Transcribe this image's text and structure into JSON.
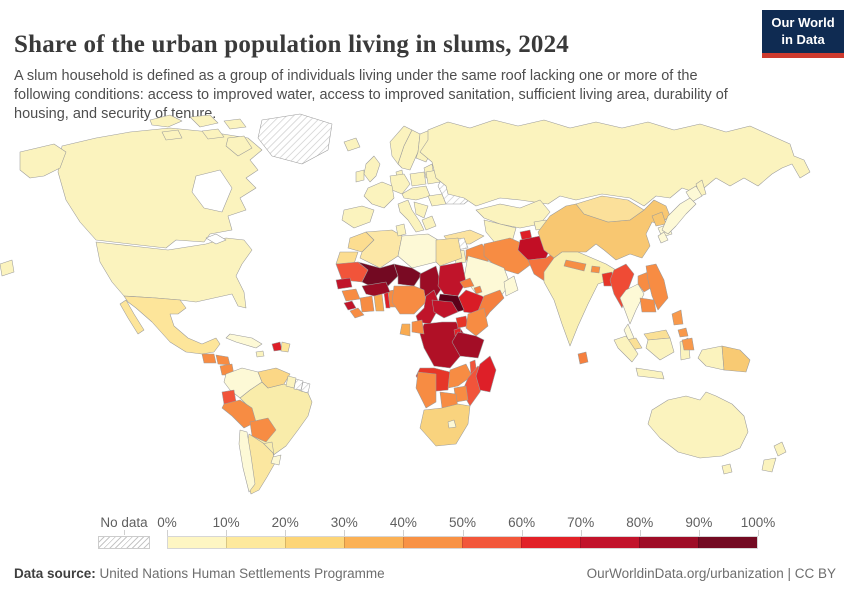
{
  "header": {
    "title": "Share of the urban population living in slums, 2024",
    "subtitle": "A slum household is defined as a group of individuals living under the same roof lacking one or more of the following conditions: access to improved water, access to improved sanitation, sufficient living area, durability of housing, and security of tenure.",
    "logo": {
      "line1": "Our World",
      "line2": "in Data",
      "bg_color": "#0F2B52",
      "accent_color": "#CE3A2E"
    }
  },
  "legend": {
    "no_data_label": "No data",
    "tick_labels": [
      "0%",
      "10%",
      "20%",
      "30%",
      "40%",
      "50%",
      "60%",
      "70%",
      "80%",
      "90%",
      "100%"
    ],
    "colors": [
      "#FEF6C3",
      "#FEE99C",
      "#FDD577",
      "#FBB155",
      "#F89245",
      "#F2573B",
      "#E22127",
      "#C2132B",
      "#9E0C26",
      "#730A22"
    ]
  },
  "footer": {
    "source_label": "Data source:",
    "source_value": " United Nations Human Settlements Programme",
    "attribution": "OurWorldinData.org/urbanization | CC BY"
  },
  "chart_data": {
    "type": "choropleth_map",
    "title": "Share of the urban population living in slums, 2024",
    "unit": "% of urban population",
    "year": 2024,
    "legend_scale": {
      "min": 0,
      "max": 100,
      "step": 10,
      "no_data": "diagonal hatch"
    },
    "bands": [
      {
        "range": "0-10%",
        "countries": [
          "United States",
          "Canada",
          "Australia",
          "New Zealand",
          "Japan",
          "South Korea",
          "Russia",
          "Kazakhstan",
          "Saudi Arabia",
          "Oman",
          "Jordan",
          "Libya",
          "Colombia",
          "Chile",
          "Uruguay",
          "Costa Rica",
          "Cuba",
          "Thailand",
          "Indonesia",
          "United Kingdom",
          "France",
          "Spain",
          "Germany",
          "Italy",
          "Poland",
          "Sweden",
          "Norway",
          "Finland",
          "Greece",
          "Romania",
          "Iceland",
          "Ireland"
        ]
      },
      {
        "range": "10-20%",
        "countries": [
          "India",
          "Mexico",
          "Brazil",
          "Argentina",
          "Paraguay",
          "Egypt",
          "Algeria",
          "Morocco",
          "Tunisia",
          "Turkey",
          "Mongolia",
          "Malaysia",
          "Panama",
          "Dominican Republic"
        ]
      },
      {
        "range": "20-30%",
        "countries": [
          "China",
          "Venezuela",
          "South Africa",
          "Papua New Guinea",
          "North Korea"
        ]
      },
      {
        "range": "30-40%",
        "countries": [
          "Ghana",
          "Gabon",
          "Philippines"
        ]
      },
      {
        "range": "40-50%",
        "countries": [
          "Nigeria",
          "Iran",
          "Iraq",
          "Yemen",
          "Somalia",
          "Kenya",
          "Zambia",
          "Guinea",
          "Côte d'Ivoire",
          "Congo",
          "Laos",
          "Cambodia",
          "Vietnam",
          "Peru",
          "Bolivia",
          "Guatemala",
          "Honduras",
          "Nicaragua",
          "Zimbabwe",
          "Botswana",
          "Namibia",
          "Eritrea",
          "Djibouti",
          "Benin",
          "Liberia",
          "Sri Lanka",
          "Pakistan",
          "Nepal",
          "Bhutan"
        ]
      },
      {
        "range": "50-60%",
        "countries": [
          "Mauritania",
          "Ecuador",
          "Myanmar",
          "Mozambique",
          "Malawi",
          "Bangladesh",
          "Burundi",
          "Angola",
          "Uganda"
        ]
      },
      {
        "range": "60-70%",
        "countries": [
          "Ethiopia",
          "Madagascar",
          "Haiti",
          "Tajikistan",
          "Togo"
        ]
      },
      {
        "range": "70-80%",
        "countries": [
          "Sudan",
          "Central African Republic",
          "Cameroon",
          "Senegal",
          "Sierra Leone",
          "Afghanistan",
          "DR Congo"
        ]
      },
      {
        "range": "80-90%",
        "countries": [
          "Chad",
          "Burkina Faso",
          "Tanzania"
        ]
      },
      {
        "range": "90-100%",
        "countries": [
          "Mali",
          "Niger",
          "South Sudan"
        ]
      },
      {
        "range": "No data",
        "countries": [
          "Greenland",
          "Ukraine",
          "Suriname",
          "French Guiana",
          "Syria"
        ]
      }
    ]
  },
  "map": {
    "ocean_color": "#ffffff",
    "border_color": "#9b9b9b",
    "region_colors": {
      "canada": "#FBF3BE",
      "usa": "#FBF3BE",
      "greenland": "hatch",
      "mexico": "#FDE59A",
      "guatemala": "#F78C43",
      "honduras": "#F78C43",
      "nicaragua": "#F78C43",
      "costa_rica": "#FDF9D6",
      "panama": "#FDE59A",
      "cuba": "#FDF9D6",
      "jamaica": "#FBF3BE",
      "haiti": "#DE1F28",
      "dominican_republic": "#FDE59A",
      "colombia": "#FDF9D6",
      "venezuela": "#FBD786",
      "guyana": "#FBF3BE",
      "suriname": "hatch",
      "french_guiana": "hatch",
      "ecuador": "#F1543A",
      "peru": "#F78C43",
      "brazil": "#F9ECAA",
      "bolivia": "#F78C43",
      "paraguay": "#F9EDAD",
      "chile": "#FDF9D6",
      "argentina": "#FBE7A0",
      "uruguay": "#FDF9D6",
      "iceland": "#FBF3BE",
      "ireland": "#FBF3BE",
      "uk": "#FBF3BE",
      "norway": "#FBF3BE",
      "sweden": "#FBF3BE",
      "finland": "#FBF3BE",
      "denmark": "#FBF3BE",
      "baltics": "#FBF3BE",
      "germany": "#FBF3BE",
      "poland": "#FBF3BE",
      "belarus": "#FBF3BE",
      "france": "#FBF3BE",
      "iberia": "#FBF3BE",
      "central_europe": "#FBF3BE",
      "romania": "#FBF3BE",
      "ukraine": "hatch",
      "balkans": "#FBF3BE",
      "greece": "#FBF3BE",
      "italy": "#FBF3BE",
      "turkey": "#FCE3A0",
      "russia": "#FBF3BE",
      "kazakhstan": "#FBF3BE",
      "central_asia": "#FBF3BE",
      "kyrgyzstan": "#FBF3BE",
      "tajikistan": "#DE1F28",
      "syria": "hatch",
      "jordan": "#FBF3BE",
      "iraq": "#F78C43",
      "iran": "#F78C43",
      "saudi_arabia": "#FDF9D6",
      "yemen": "#F78C43",
      "oman": "#FDF9D6",
      "afghanistan": "#C20E25",
      "pakistan": "#F4743D",
      "india": "#FAF0B2",
      "sri_lanka": "#F5803F",
      "nepal": "#F68E44",
      "bhutan": "#F68E44",
      "bangladesh": "#E63628",
      "myanmar": "#EF4B35",
      "thailand": "#FDF9D6",
      "laos": "#F78C43",
      "vietnam": "#F78C43",
      "cambodia": "#F78C43",
      "malaysia": "#FAE096",
      "indonesia": "#FBF3BE",
      "papua_new_guinea": "#F8CA73",
      "philippines": "#F8994B",
      "china": "#F8C771",
      "mongolia": "#FBE09A",
      "north_korea": "#F8C771",
      "south_korea": "#FDF9D6",
      "japan": "#FDF9D6",
      "australia": "#FBF3BE",
      "new_zealand": "#FBF3BE",
      "morocco": "#FCDD90",
      "western_sahara": "#FCDD90",
      "algeria": "#FCE7A6",
      "tunisia": "#FBF3BE",
      "libya": "#FDF9D6",
      "egypt": "#FBE29A",
      "mauritania": "#F1543A",
      "mali": "#730922",
      "niger": "#7A0A23",
      "chad": "#9B0C25",
      "sudan": "#C0142A",
      "eritrea": "#F5803F",
      "djibouti": "#F5803F",
      "ethiopia": "#D91C26",
      "somalia": "#F5803F",
      "south_sudan": "#5C0019",
      "senegal": "#C0142A",
      "guinea": "#F78C43",
      "sierra_leone": "#C0142A",
      "liberia": "#F78C43",
      "cote_divoire": "#F78C43",
      "ghana": "#F9AB51",
      "togo": "#DE1F28",
      "benin": "#F78C43",
      "burkina_faso": "#9B0C25",
      "nigeria": "#F78C43",
      "cameroon": "#C0142A",
      "central_african_republic": "#C0142A",
      "dr_congo": "#B01026",
      "congo": "#F78C43",
      "gabon": "#F9AB51",
      "uganda": "#E63628",
      "kenya": "#F78C43",
      "rwanda_burundi": "#E22127",
      "tanzania": "#A30D26",
      "angola": "#E63628",
      "zambia": "#F78C43",
      "malawi": "#F1543A",
      "mozambique": "#F1543A",
      "zimbabwe": "#F78C43",
      "botswana": "#F78C43",
      "namibia": "#F78C43",
      "south_africa": "#F9D37E",
      "lesotho": "#FDF9D6",
      "madagascar": "#DE1F28"
    }
  }
}
